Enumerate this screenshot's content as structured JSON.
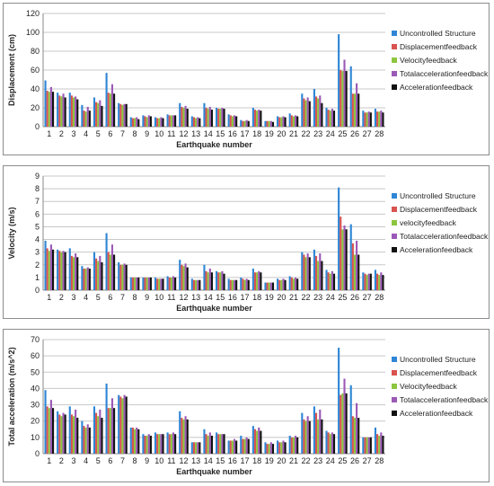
{
  "palette": {
    "uncontrolled": "#2e86d6",
    "displacement": "#d9534f",
    "velocity": "#8cc63f",
    "totalacc": "#9b59b6",
    "acceleration": "#111111"
  },
  "chart_data": [
    {
      "type": "bar",
      "ylabel": "Displacement (cm)",
      "xlabel": "Earthquake number",
      "ylim": [
        0,
        120
      ],
      "yticks": [
        0,
        20,
        40,
        60,
        80,
        100,
        120
      ],
      "grid": true,
      "legend_position": "right",
      "categories": [
        "1",
        "2",
        "3",
        "4",
        "5",
        "6",
        "7",
        "8",
        "9",
        "10",
        "11",
        "12",
        "13",
        "14",
        "15",
        "16",
        "17",
        "18",
        "19",
        "20",
        "21",
        "22",
        "23",
        "24",
        "25",
        "26",
        "27",
        "28"
      ],
      "series": [
        {
          "name": "Uncontrolled Structure",
          "values": [
            49,
            36,
            36,
            23,
            31,
            57,
            25,
            10,
            12,
            10,
            13,
            25,
            11,
            25,
            20,
            13,
            7,
            20,
            6,
            11,
            14,
            35,
            40,
            20,
            98,
            64,
            17,
            19
          ]
        },
        {
          "name": "Displacementfeedback",
          "values": [
            38,
            33,
            33,
            17,
            26,
            36,
            24,
            9,
            11,
            9,
            12,
            21,
            10,
            20,
            19,
            12,
            6,
            18,
            6,
            10,
            12,
            30,
            32,
            18,
            60,
            35,
            15,
            16
          ]
        },
        {
          "name": "Velocityfeedback",
          "values": [
            37,
            32,
            31,
            16,
            25,
            35,
            23,
            9,
            10,
            9,
            12,
            20,
            9,
            19,
            19,
            11,
            6,
            17,
            6,
            10,
            11,
            28,
            30,
            17,
            59,
            35,
            15,
            16
          ]
        },
        {
          "name": "Totalaccelerationfeedback",
          "values": [
            42,
            35,
            32,
            21,
            28,
            45,
            24,
            10,
            12,
            10,
            12,
            22,
            10,
            21,
            20,
            12,
            7,
            18,
            6,
            11,
            12,
            31,
            33,
            19,
            71,
            46,
            16,
            17
          ]
        },
        {
          "name": "Accelerationfeedback",
          "values": [
            37,
            31,
            29,
            17,
            22,
            35,
            24,
            8,
            11,
            9,
            12,
            19,
            9,
            18,
            19,
            11,
            6,
            17,
            5,
            10,
            11,
            27,
            25,
            17,
            59,
            35,
            15,
            15
          ]
        }
      ]
    },
    {
      "type": "bar",
      "ylabel": "Velocity (m/s)",
      "xlabel": "Earthquake number",
      "ylim": [
        0,
        9
      ],
      "yticks": [
        0,
        1,
        2,
        3,
        4,
        5,
        6,
        7,
        8,
        9
      ],
      "grid": true,
      "legend_position": "right",
      "categories": [
        "1",
        "2",
        "3",
        "4",
        "5",
        "6",
        "7",
        "8",
        "9",
        "10",
        "11",
        "12",
        "13",
        "14",
        "15",
        "16",
        "17",
        "18",
        "19",
        "20",
        "21",
        "22",
        "23",
        "24",
        "25",
        "26",
        "27",
        "28"
      ],
      "series": [
        {
          "name": "Uncontrolled Structure",
          "values": [
            3.9,
            3.2,
            3.3,
            1.9,
            3.0,
            4.5,
            2.2,
            1.0,
            1.0,
            1.0,
            1.1,
            2.4,
            0.9,
            2.0,
            1.5,
            0.9,
            1.0,
            1.7,
            0.6,
            0.9,
            1.1,
            3.0,
            3.2,
            1.6,
            8.1,
            5.2,
            1.4,
            1.6
          ]
        },
        {
          "name": "Displacementfeedback",
          "values": [
            3.3,
            3.1,
            2.7,
            1.7,
            2.5,
            3.0,
            2.0,
            1.0,
            1.0,
            0.9,
            1.0,
            2.0,
            0.8,
            1.5,
            1.4,
            0.8,
            0.9,
            1.4,
            0.6,
            0.8,
            1.0,
            2.8,
            2.7,
            1.4,
            5.8,
            3.7,
            1.3,
            1.3
          ]
        },
        {
          "name": "velocityfeedback",
          "values": [
            3.1,
            3.0,
            2.6,
            1.7,
            2.3,
            2.8,
            2.0,
            1.0,
            1.0,
            0.9,
            1.0,
            1.9,
            0.8,
            1.4,
            1.4,
            0.8,
            0.8,
            1.4,
            0.6,
            0.8,
            0.9,
            2.6,
            2.3,
            1.3,
            4.8,
            2.8,
            1.2,
            1.2
          ]
        },
        {
          "name": "Totalaccelerationfeedback",
          "values": [
            3.6,
            3.1,
            2.9,
            1.8,
            2.7,
            3.6,
            2.1,
            1.0,
            1.0,
            0.9,
            1.1,
            2.1,
            0.8,
            1.7,
            1.5,
            0.8,
            0.9,
            1.5,
            0.6,
            0.9,
            1.0,
            2.9,
            2.9,
            1.5,
            5.1,
            3.9,
            1.3,
            1.4
          ]
        },
        {
          "name": "Accelerationfeedback",
          "values": [
            3.2,
            3.0,
            2.6,
            1.7,
            2.2,
            2.8,
            2.0,
            1.0,
            1.0,
            0.9,
            1.0,
            1.8,
            0.8,
            1.4,
            1.3,
            0.8,
            0.8,
            1.4,
            0.6,
            0.8,
            0.9,
            2.6,
            2.3,
            1.3,
            4.8,
            2.8,
            1.3,
            1.2
          ]
        }
      ]
    },
    {
      "type": "bar",
      "ylabel": "Total acceleration (m/s^2)",
      "xlabel": "Earthquake number",
      "ylim": [
        0,
        70
      ],
      "yticks": [
        0,
        10,
        20,
        30,
        40,
        50,
        60,
        70
      ],
      "grid": true,
      "legend_position": "right",
      "categories": [
        "1",
        "2",
        "3",
        "4",
        "5",
        "6",
        "7",
        "8",
        "9",
        "10",
        "11",
        "12",
        "13",
        "14",
        "15",
        "16",
        "17",
        "18",
        "19",
        "20",
        "21",
        "22",
        "23",
        "24",
        "25",
        "26",
        "27",
        "28"
      ],
      "series": [
        {
          "name": "Uncontrolled Structure",
          "values": [
            39,
            26,
            29,
            20,
            29,
            43,
            36,
            16,
            12,
            13,
            13,
            26,
            7,
            15,
            13,
            8,
            11,
            17,
            7,
            8,
            11,
            25,
            29,
            14,
            65,
            42,
            10,
            16
          ]
        },
        {
          "name": "Displacementfeedback",
          "values": [
            29,
            24,
            24,
            17,
            25,
            28,
            35,
            16,
            11,
            12,
            12,
            22,
            7,
            12,
            12,
            8,
            9,
            15,
            6,
            7,
            10,
            21,
            25,
            13,
            36,
            23,
            10,
            12
          ]
        },
        {
          "name": "Velocityfeedback",
          "values": [
            28,
            23,
            23,
            16,
            23,
            28,
            34,
            15,
            11,
            12,
            12,
            21,
            7,
            11,
            12,
            8,
            9,
            14,
            6,
            7,
            10,
            20,
            21,
            12,
            37,
            22,
            10,
            11
          ]
        },
        {
          "name": "Totalaccelerationfeedback",
          "values": [
            33,
            25,
            27,
            18,
            27,
            34,
            36,
            16,
            12,
            12,
            13,
            23,
            7,
            13,
            12,
            9,
            10,
            16,
            7,
            8,
            11,
            23,
            27,
            13,
            46,
            31,
            10,
            13
          ]
        },
        {
          "name": "Accelerationfeedback",
          "values": [
            28,
            24,
            22,
            16,
            22,
            28,
            35,
            15,
            11,
            12,
            12,
            21,
            7,
            11,
            12,
            8,
            9,
            14,
            6,
            7,
            10,
            20,
            21,
            12,
            37,
            22,
            10,
            11
          ]
        }
      ]
    }
  ]
}
